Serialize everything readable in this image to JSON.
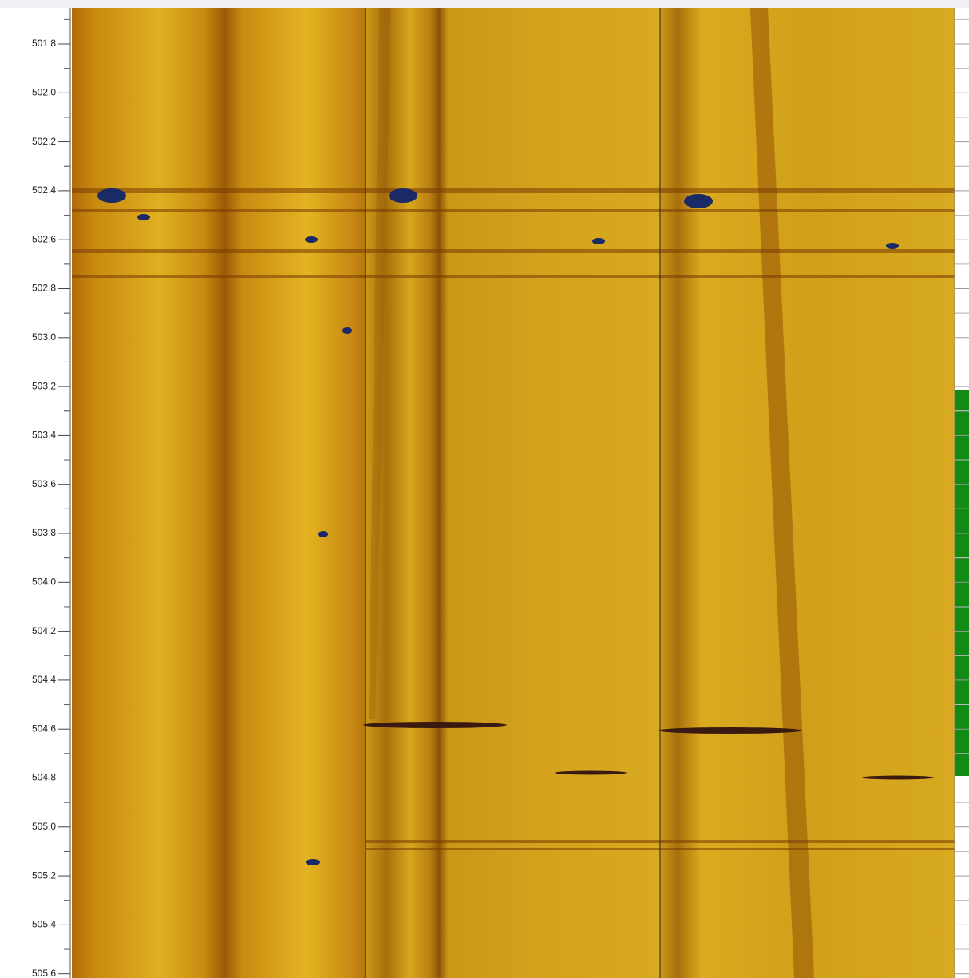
{
  "depth_axis": {
    "ticks": [
      "501.8",
      "502.0",
      "502.2",
      "502.4",
      "502.6",
      "502.8",
      "503.0",
      "503.2",
      "503.4",
      "503.6",
      "503.8",
      "504.0",
      "504.2",
      "504.4",
      "504.6",
      "504.8",
      "505.0",
      "505.2",
      "505.4",
      "505.6"
    ]
  }
}
